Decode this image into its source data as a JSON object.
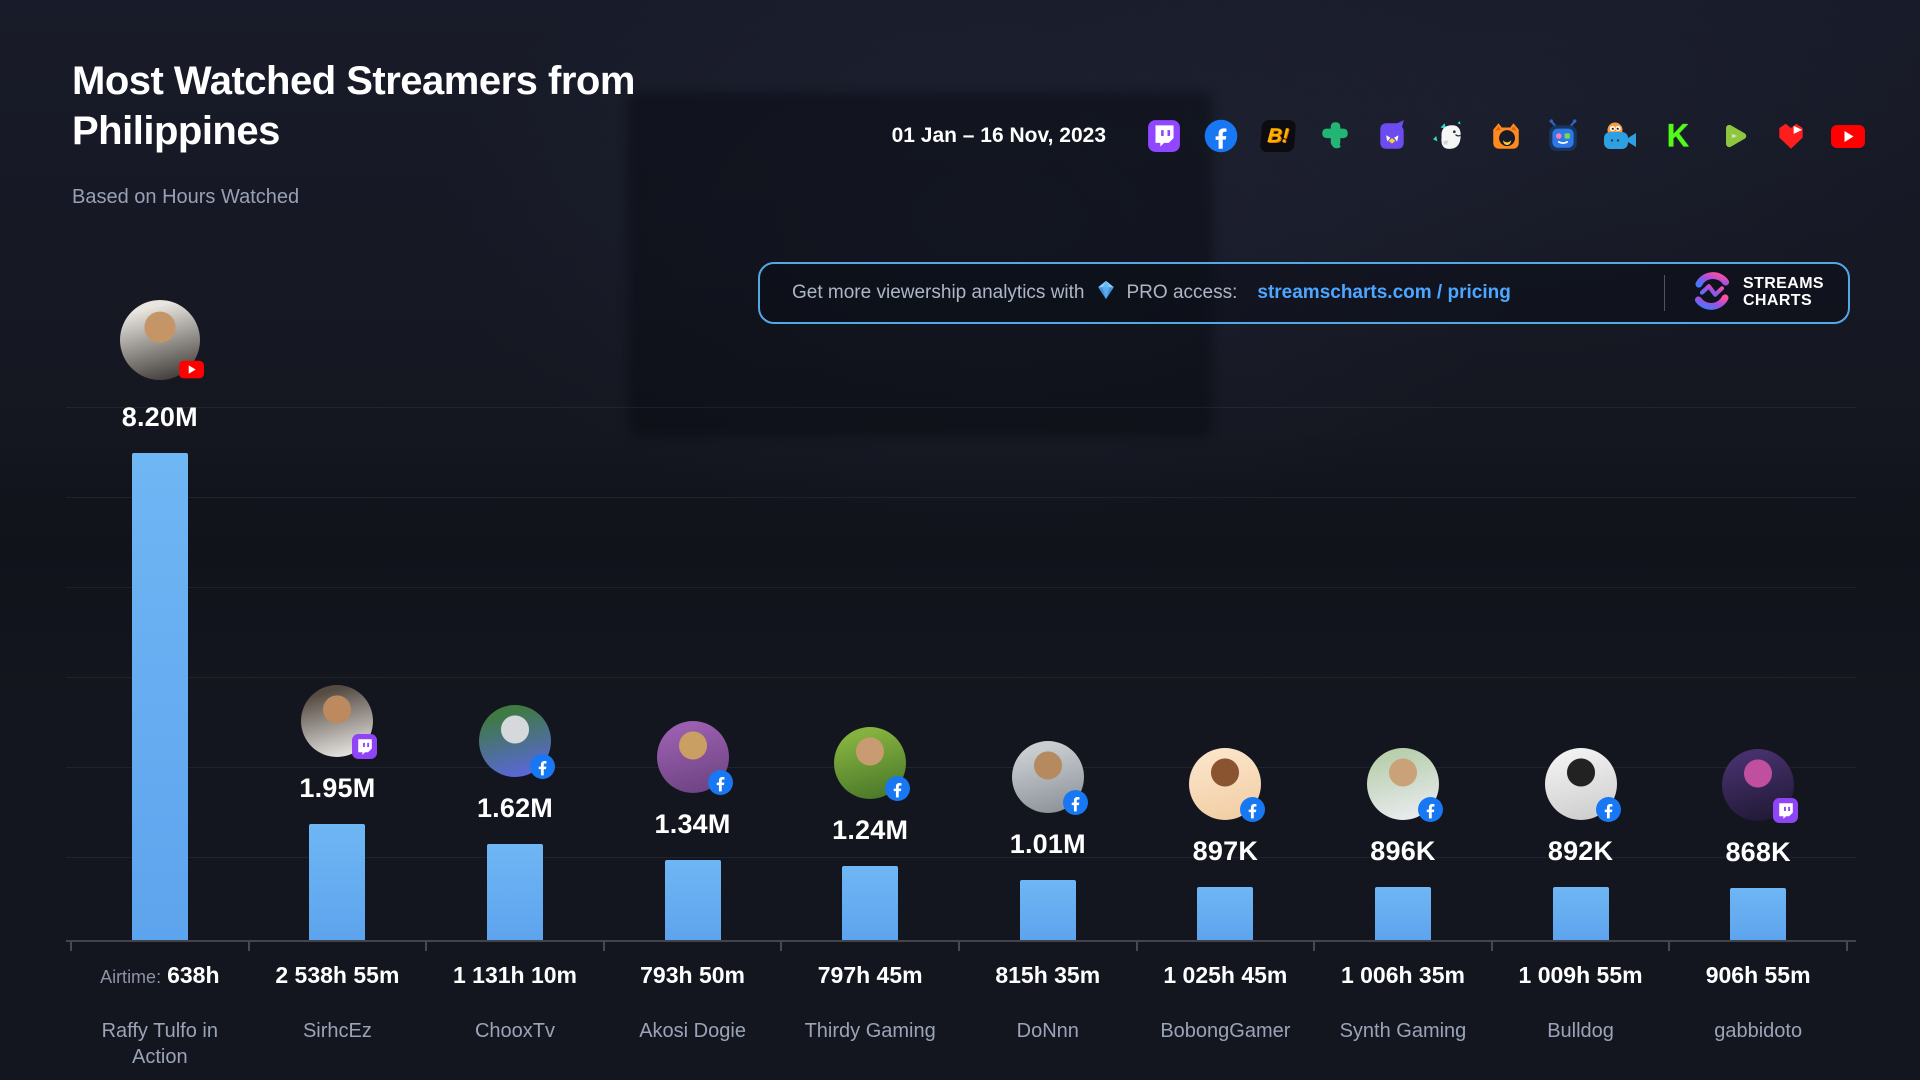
{
  "header": {
    "title": "Most Watched Streamers from Philippines",
    "subtitle": "Based on Hours Watched",
    "date_range": "01 Jan – 16 Nov, 2023"
  },
  "platforms": [
    {
      "name": "twitch",
      "color": "#9146ff"
    },
    {
      "name": "facebook",
      "color": "#1877f2"
    },
    {
      "name": "bigo",
      "label": "B!",
      "color": "#ffb300",
      "bg": "#0c0c10"
    },
    {
      "name": "trovo",
      "color": "#22b573"
    },
    {
      "name": "nimo",
      "color": "#6c4cf1",
      "accent": "#ffd028"
    },
    {
      "name": "white-mascot",
      "color": "#f5f7f7",
      "accent": "#35d8c8"
    },
    {
      "name": "orange-cat",
      "color": "#ff8a1e",
      "accent": "#181a2c"
    },
    {
      "name": "booyah",
      "color": "#2a66c9",
      "accent": "#78d94e"
    },
    {
      "name": "camera-mascot",
      "color": "#2e9fe0",
      "accent": "#ff9a3c"
    },
    {
      "name": "kick",
      "label": "K",
      "color": "#53fc18"
    },
    {
      "name": "rumble",
      "color": "#8ec63f"
    },
    {
      "name": "heart-play",
      "color": "#ff1d1d"
    },
    {
      "name": "youtube",
      "color": "#ff0000"
    }
  ],
  "promo": {
    "text_prefix": "Get more viewership analytics with",
    "text_mid": "PRO access:",
    "link": "streamscharts.com / pricing",
    "logo_line1": "STREAMS",
    "logo_line2": "CHARTS"
  },
  "chart_data": {
    "type": "bar",
    "title": "Most Watched Streamers from Philippines",
    "metric": "Hours Watched",
    "ylim": [
      0,
      8200000
    ],
    "grid": true,
    "airtime_label": "Airtime:",
    "bar_color_top": "#6fb6f4",
    "bar_color_bottom": "#5da4ee",
    "streamers": [
      {
        "name": "Raffy Tulfo in Action",
        "value_label": "8.20M",
        "value": 8200000,
        "airtime": "638h",
        "platform": "youtube",
        "avatar_colors": [
          "#e9e6e0",
          "#46423f",
          "#c59467"
        ]
      },
      {
        "name": "SirhcEz",
        "value_label": "1.95M",
        "value": 1950000,
        "airtime": "2 538h 55m",
        "platform": "twitch",
        "avatar_colors": [
          "#554b42",
          "#e3e1de",
          "#bd8a60"
        ]
      },
      {
        "name": "ChooxTv",
        "value_label": "1.62M",
        "value": 1620000,
        "airtime": "1 131h 10m",
        "platform": "facebook",
        "avatar_colors": [
          "#3e7a41",
          "#5a67d8",
          "#d6d9dc"
        ]
      },
      {
        "name": "Akosi Dogie",
        "value_label": "1.34M",
        "value": 1340000,
        "airtime": "793h 50m",
        "platform": "facebook",
        "avatar_colors": [
          "#9a5fae",
          "#6f4484",
          "#c99f63"
        ]
      },
      {
        "name": "Thirdy Gaming",
        "value_label": "1.24M",
        "value": 1240000,
        "airtime": "797h 45m",
        "platform": "facebook",
        "avatar_colors": [
          "#85b23f",
          "#4c7a2a",
          "#c99b72"
        ]
      },
      {
        "name": "DoNnn",
        "value_label": "1.01M",
        "value": 1010000,
        "airtime": "815h 35m",
        "platform": "facebook",
        "avatar_colors": [
          "#c9ced3",
          "#8f959b",
          "#b68a5f"
        ]
      },
      {
        "name": "BobongGamer",
        "value_label": "897K",
        "value": 897000,
        "airtime": "1 025h 45m",
        "platform": "facebook",
        "avatar_colors": [
          "#fbe3c8",
          "#f2cfa6",
          "#8a5430"
        ]
      },
      {
        "name": "Synth Gaming",
        "value_label": "896K",
        "value": 896000,
        "airtime": "1 006h 35m",
        "platform": "facebook",
        "avatar_colors": [
          "#b9cfae",
          "#e8ebee",
          "#caa27a"
        ]
      },
      {
        "name": "Bulldog",
        "value_label": "892K",
        "value": 892000,
        "airtime": "1 009h 55m",
        "platform": "facebook",
        "avatar_colors": [
          "#f0f0f0",
          "#cfcfcf",
          "#222222"
        ]
      },
      {
        "name": "gabbidoto",
        "value_label": "868K",
        "value": 868000,
        "airtime": "906h 55m",
        "platform": "twitch",
        "avatar_colors": [
          "#46306b",
          "#211a38",
          "#c04fa0"
        ]
      }
    ]
  }
}
